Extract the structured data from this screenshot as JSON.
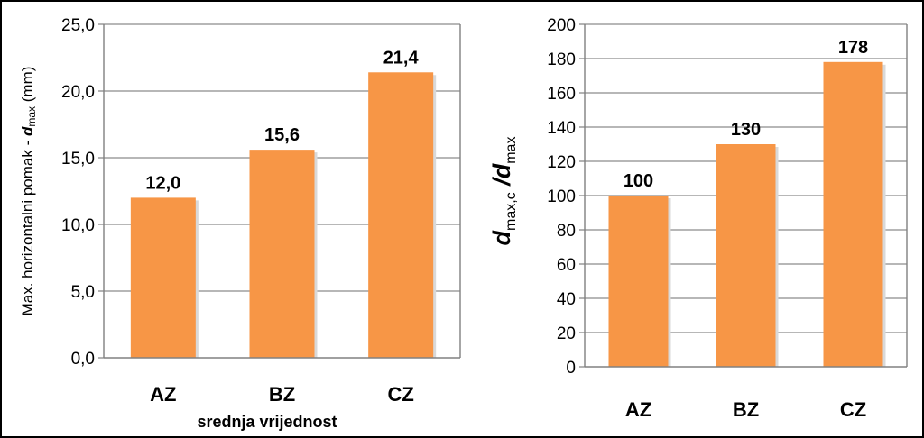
{
  "chart_data": [
    {
      "type": "bar",
      "categories": [
        "AZ",
        "BZ",
        "CZ"
      ],
      "values": [
        12.0,
        15.6,
        21.4
      ],
      "data_labels": [
        "12,0",
        "15,6",
        "21,4"
      ],
      "ylim": [
        0,
        25
      ],
      "yticks": [
        0,
        5,
        10,
        15,
        20,
        25
      ],
      "ytick_labels": [
        "0,0",
        "5,0",
        "10,0",
        "15,0",
        "20,0",
        "25,0"
      ],
      "ylabel": {
        "main": "Max. horizontalni pomak - ",
        "var": "d",
        "sub": "max",
        "unit": " (mm)"
      },
      "xlabel": "srednja vrijednost",
      "grid": true,
      "bar_color": "#F79646"
    },
    {
      "type": "bar",
      "categories": [
        "AZ",
        "BZ",
        "CZ"
      ],
      "values": [
        100,
        130,
        178
      ],
      "data_labels": [
        "100",
        "130",
        "178"
      ],
      "ylim": [
        0,
        200
      ],
      "yticks": [
        0,
        20,
        40,
        60,
        80,
        100,
        120,
        140,
        160,
        180,
        200
      ],
      "ytick_labels": [
        "0",
        "20",
        "40",
        "60",
        "80",
        "100",
        "120",
        "140",
        "160",
        "180",
        "200"
      ],
      "ylabel": {
        "var1": "d",
        "sub1": "max,c",
        "sep": " /",
        "var2": "d",
        "sub2": "max"
      },
      "xlabel": "",
      "grid": true,
      "bar_color": "#F79646"
    }
  ]
}
